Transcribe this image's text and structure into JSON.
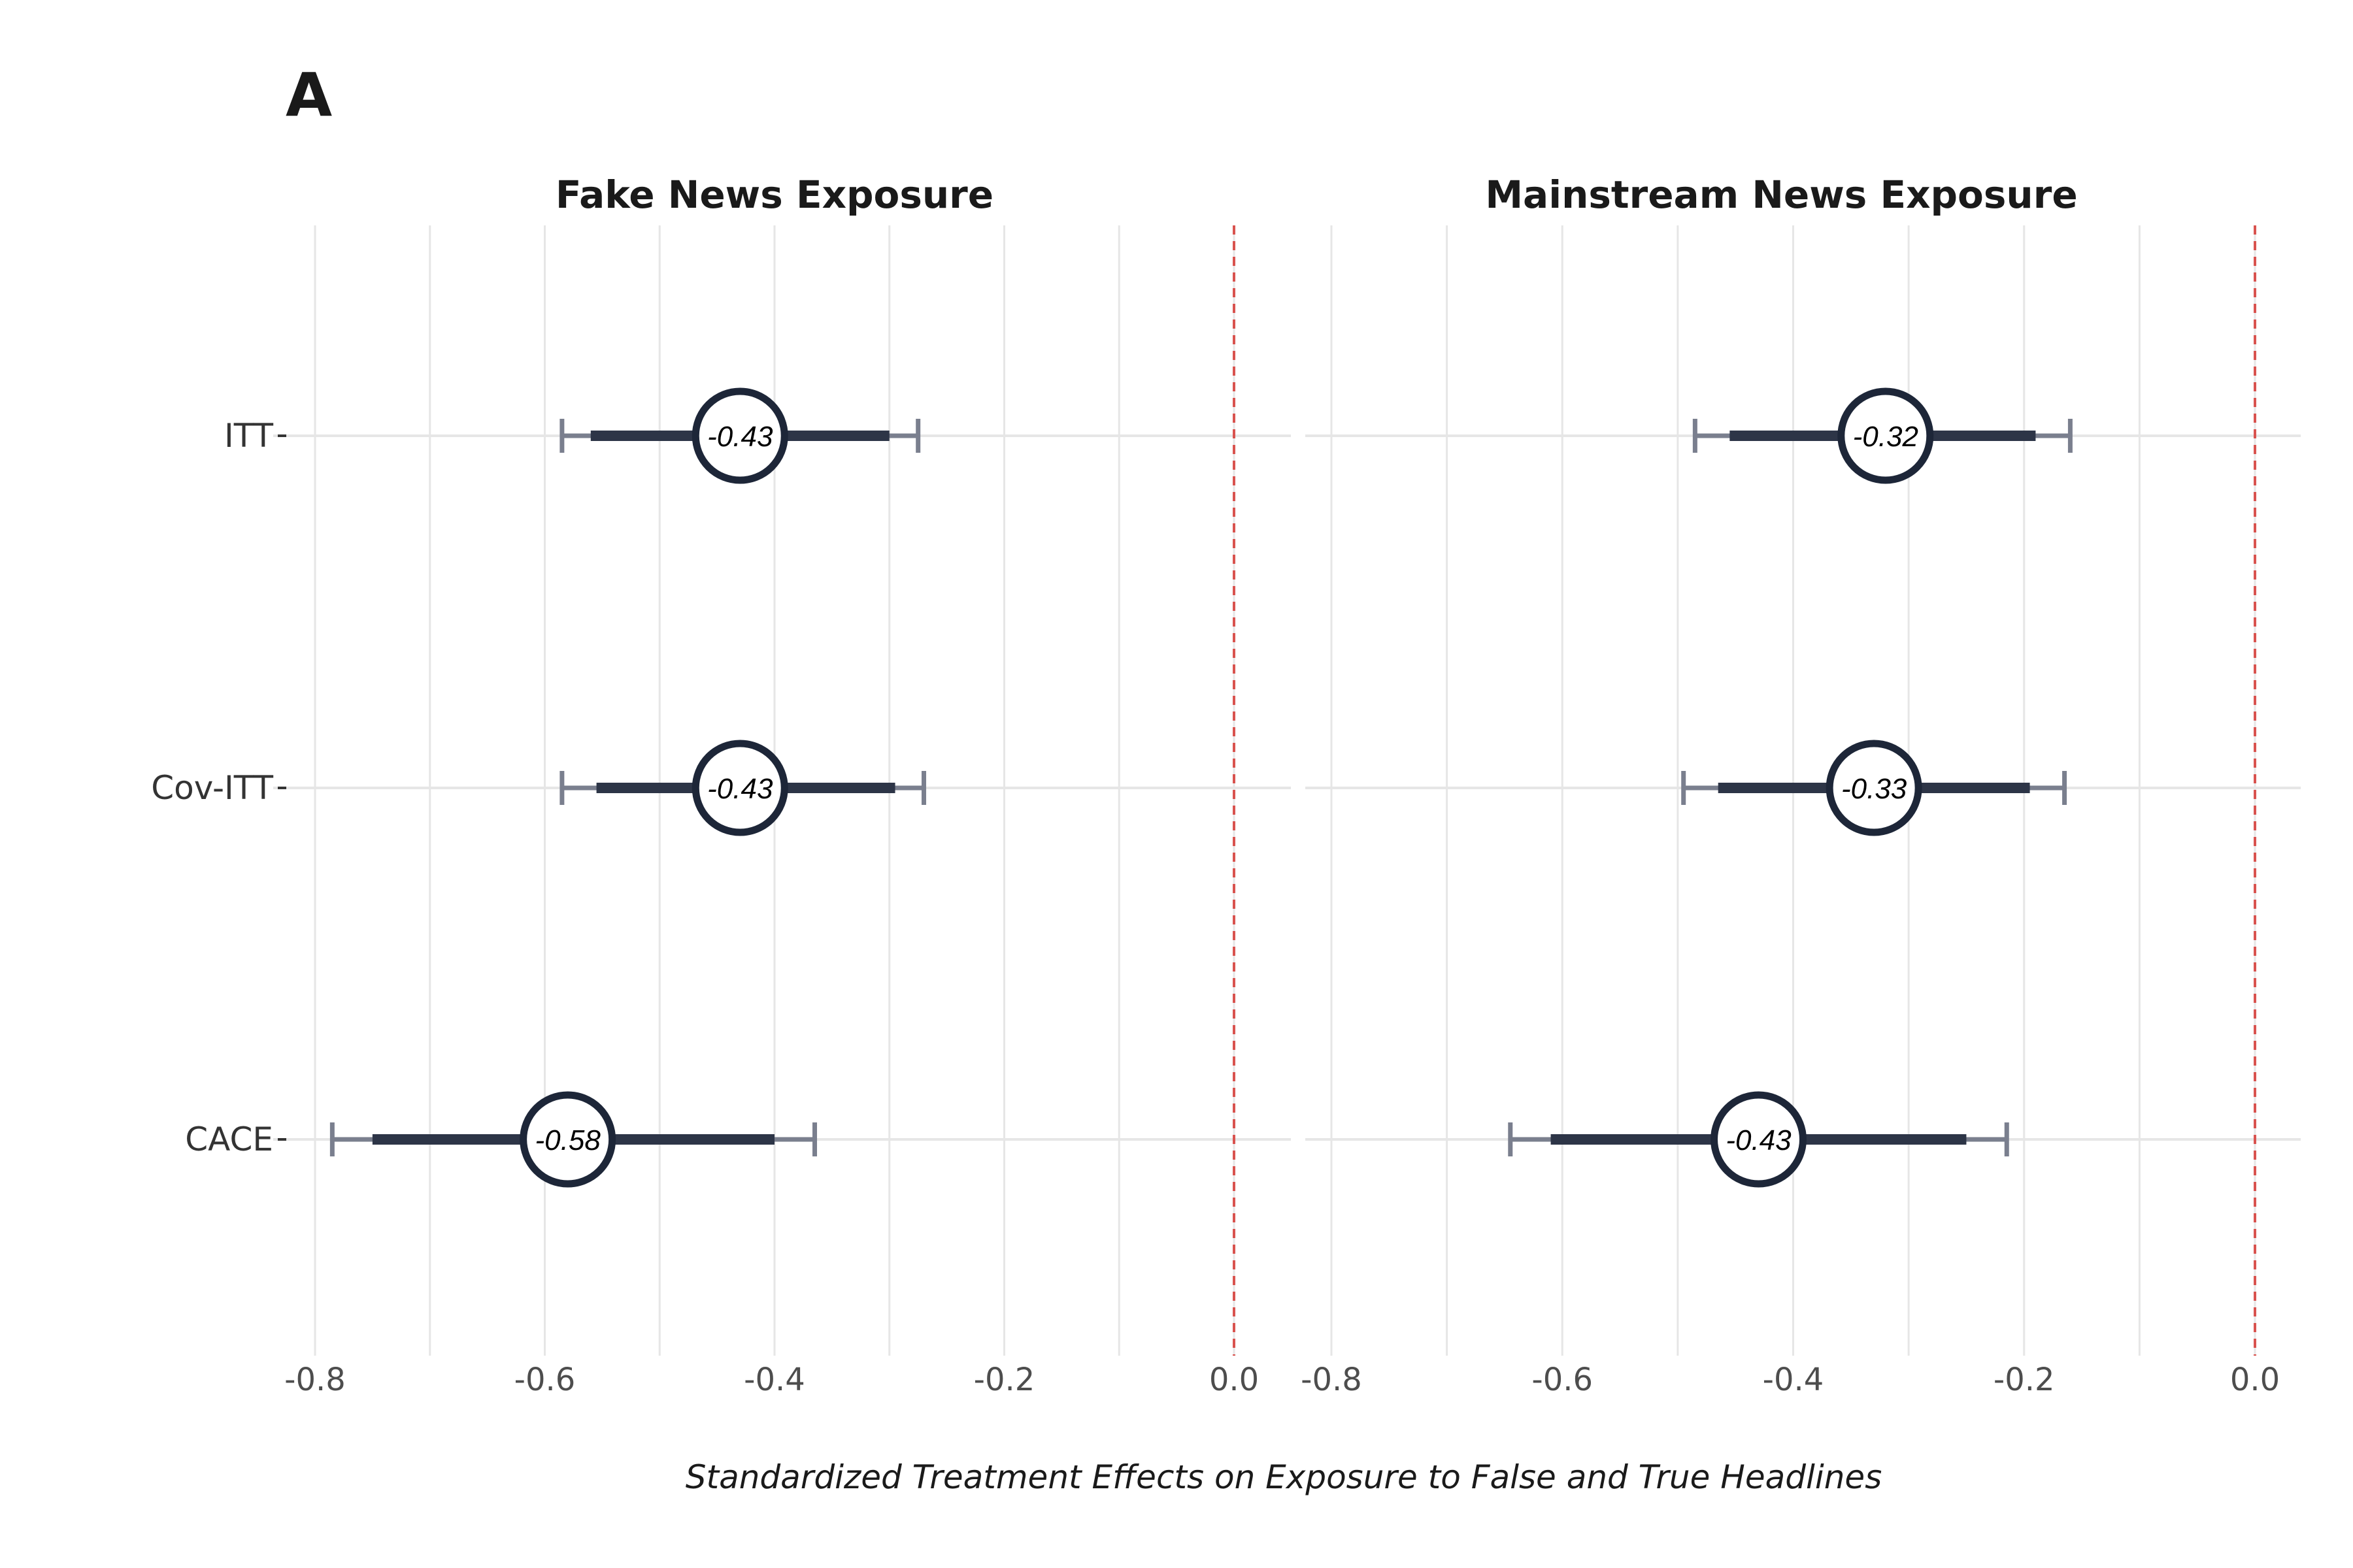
{
  "panel_letter": "A",
  "chart_data": {
    "type": "forest",
    "xlabel": "Standardized Treatment Effects on Exposure to False and True Headlines",
    "xlim": [
      -0.8,
      0.0
    ],
    "x_ticks": [
      "-0.8",
      "-0.6",
      "-0.4",
      "-0.2",
      "0.0"
    ],
    "x_tick_values": [
      -0.8,
      -0.6,
      -0.4,
      -0.2,
      0.0
    ],
    "reference_line": 0.0,
    "categories": [
      "ITT",
      "Cov-ITT",
      "CACE"
    ],
    "grid": true,
    "colors": {
      "point_border": "#1d2638",
      "inner_ci": "#2d3547",
      "outer_ci": "#7a7f8e",
      "reference_line": "#d9534f",
      "grid": "#e6e6e6"
    },
    "facets": [
      {
        "title": "Fake News Exposure",
        "estimates": [
          {
            "label": "ITT",
            "estimate": -0.43,
            "estimate_label": "-0.43",
            "ci90": [
              -0.56,
              -0.3
            ],
            "ci95": [
              -0.585,
              -0.275
            ]
          },
          {
            "label": "Cov-ITT",
            "estimate": -0.43,
            "estimate_label": "-0.43",
            "ci90": [
              -0.555,
              -0.295
            ],
            "ci95": [
              -0.585,
              -0.27
            ]
          },
          {
            "label": "CACE",
            "estimate": -0.58,
            "estimate_label": "-0.58",
            "ci90": [
              -0.75,
              -0.4
            ],
            "ci95": [
              -0.785,
              -0.365
            ]
          }
        ]
      },
      {
        "title": "Mainstream News Exposure",
        "estimates": [
          {
            "label": "ITT",
            "estimate": -0.32,
            "estimate_label": "-0.32",
            "ci90": [
              -0.455,
              -0.19
            ],
            "ci95": [
              -0.485,
              -0.16
            ]
          },
          {
            "label": "Cov-ITT",
            "estimate": -0.33,
            "estimate_label": "-0.33",
            "ci90": [
              -0.465,
              -0.195
            ],
            "ci95": [
              -0.495,
              -0.165
            ]
          },
          {
            "label": "CACE",
            "estimate": -0.43,
            "estimate_label": "-0.43",
            "ci90": [
              -0.61,
              -0.25
            ],
            "ci95": [
              -0.645,
              -0.215
            ]
          }
        ]
      }
    ]
  }
}
